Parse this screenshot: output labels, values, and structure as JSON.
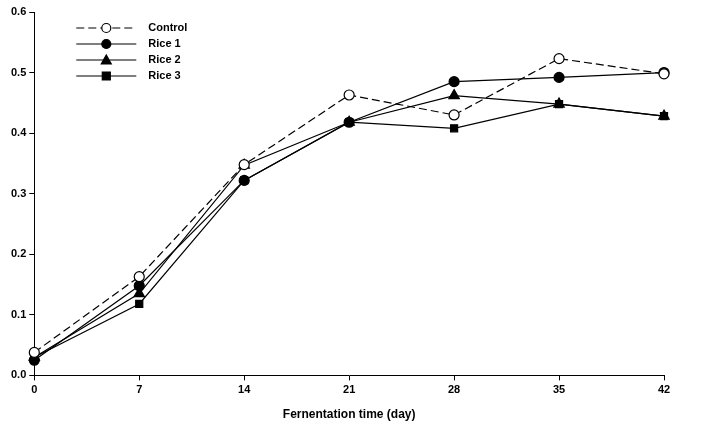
{
  "chart_data": {
    "type": "line",
    "x_label": "Fernentation time (day)",
    "x": [
      0,
      7,
      14,
      21,
      28,
      35,
      42
    ],
    "xlim": [
      0,
      42
    ],
    "xticks": [
      0,
      7,
      14,
      21,
      28,
      35,
      42
    ],
    "ylim": [
      0,
      0.6
    ],
    "yticks": [
      {
        "value": 0,
        "label": "0.0"
      },
      0.1,
      0.2,
      0.3,
      0.4,
      0.5,
      0.6
    ],
    "grid": false,
    "legend": "upper left",
    "series": [
      {
        "name": "Control",
        "color": "#000000",
        "marker": "open_circle",
        "line_style": "dashed",
        "values": [
          0.038,
          0.163,
          0.348,
          0.463,
          0.43,
          0.523,
          0.498
        ]
      },
      {
        "name": "Rice 1",
        "color": "#000000",
        "marker": "circle",
        "line_style": "solid",
        "values": [
          0.025,
          0.148,
          0.322,
          0.418,
          0.485,
          0.492,
          0.5
        ]
      },
      {
        "name": "Rice 2",
        "color": "#000000",
        "marker": "triangle",
        "line_style": "solid",
        "values": [
          0.03,
          0.135,
          0.347,
          0.418,
          0.462,
          0.448,
          0.428
        ]
      },
      {
        "name": "Rice 3",
        "color": "#000000",
        "marker": "square",
        "line_style": "solid",
        "values": [
          0.03,
          0.118,
          0.322,
          0.418,
          0.408,
          0.448,
          0.428
        ]
      }
    ]
  }
}
